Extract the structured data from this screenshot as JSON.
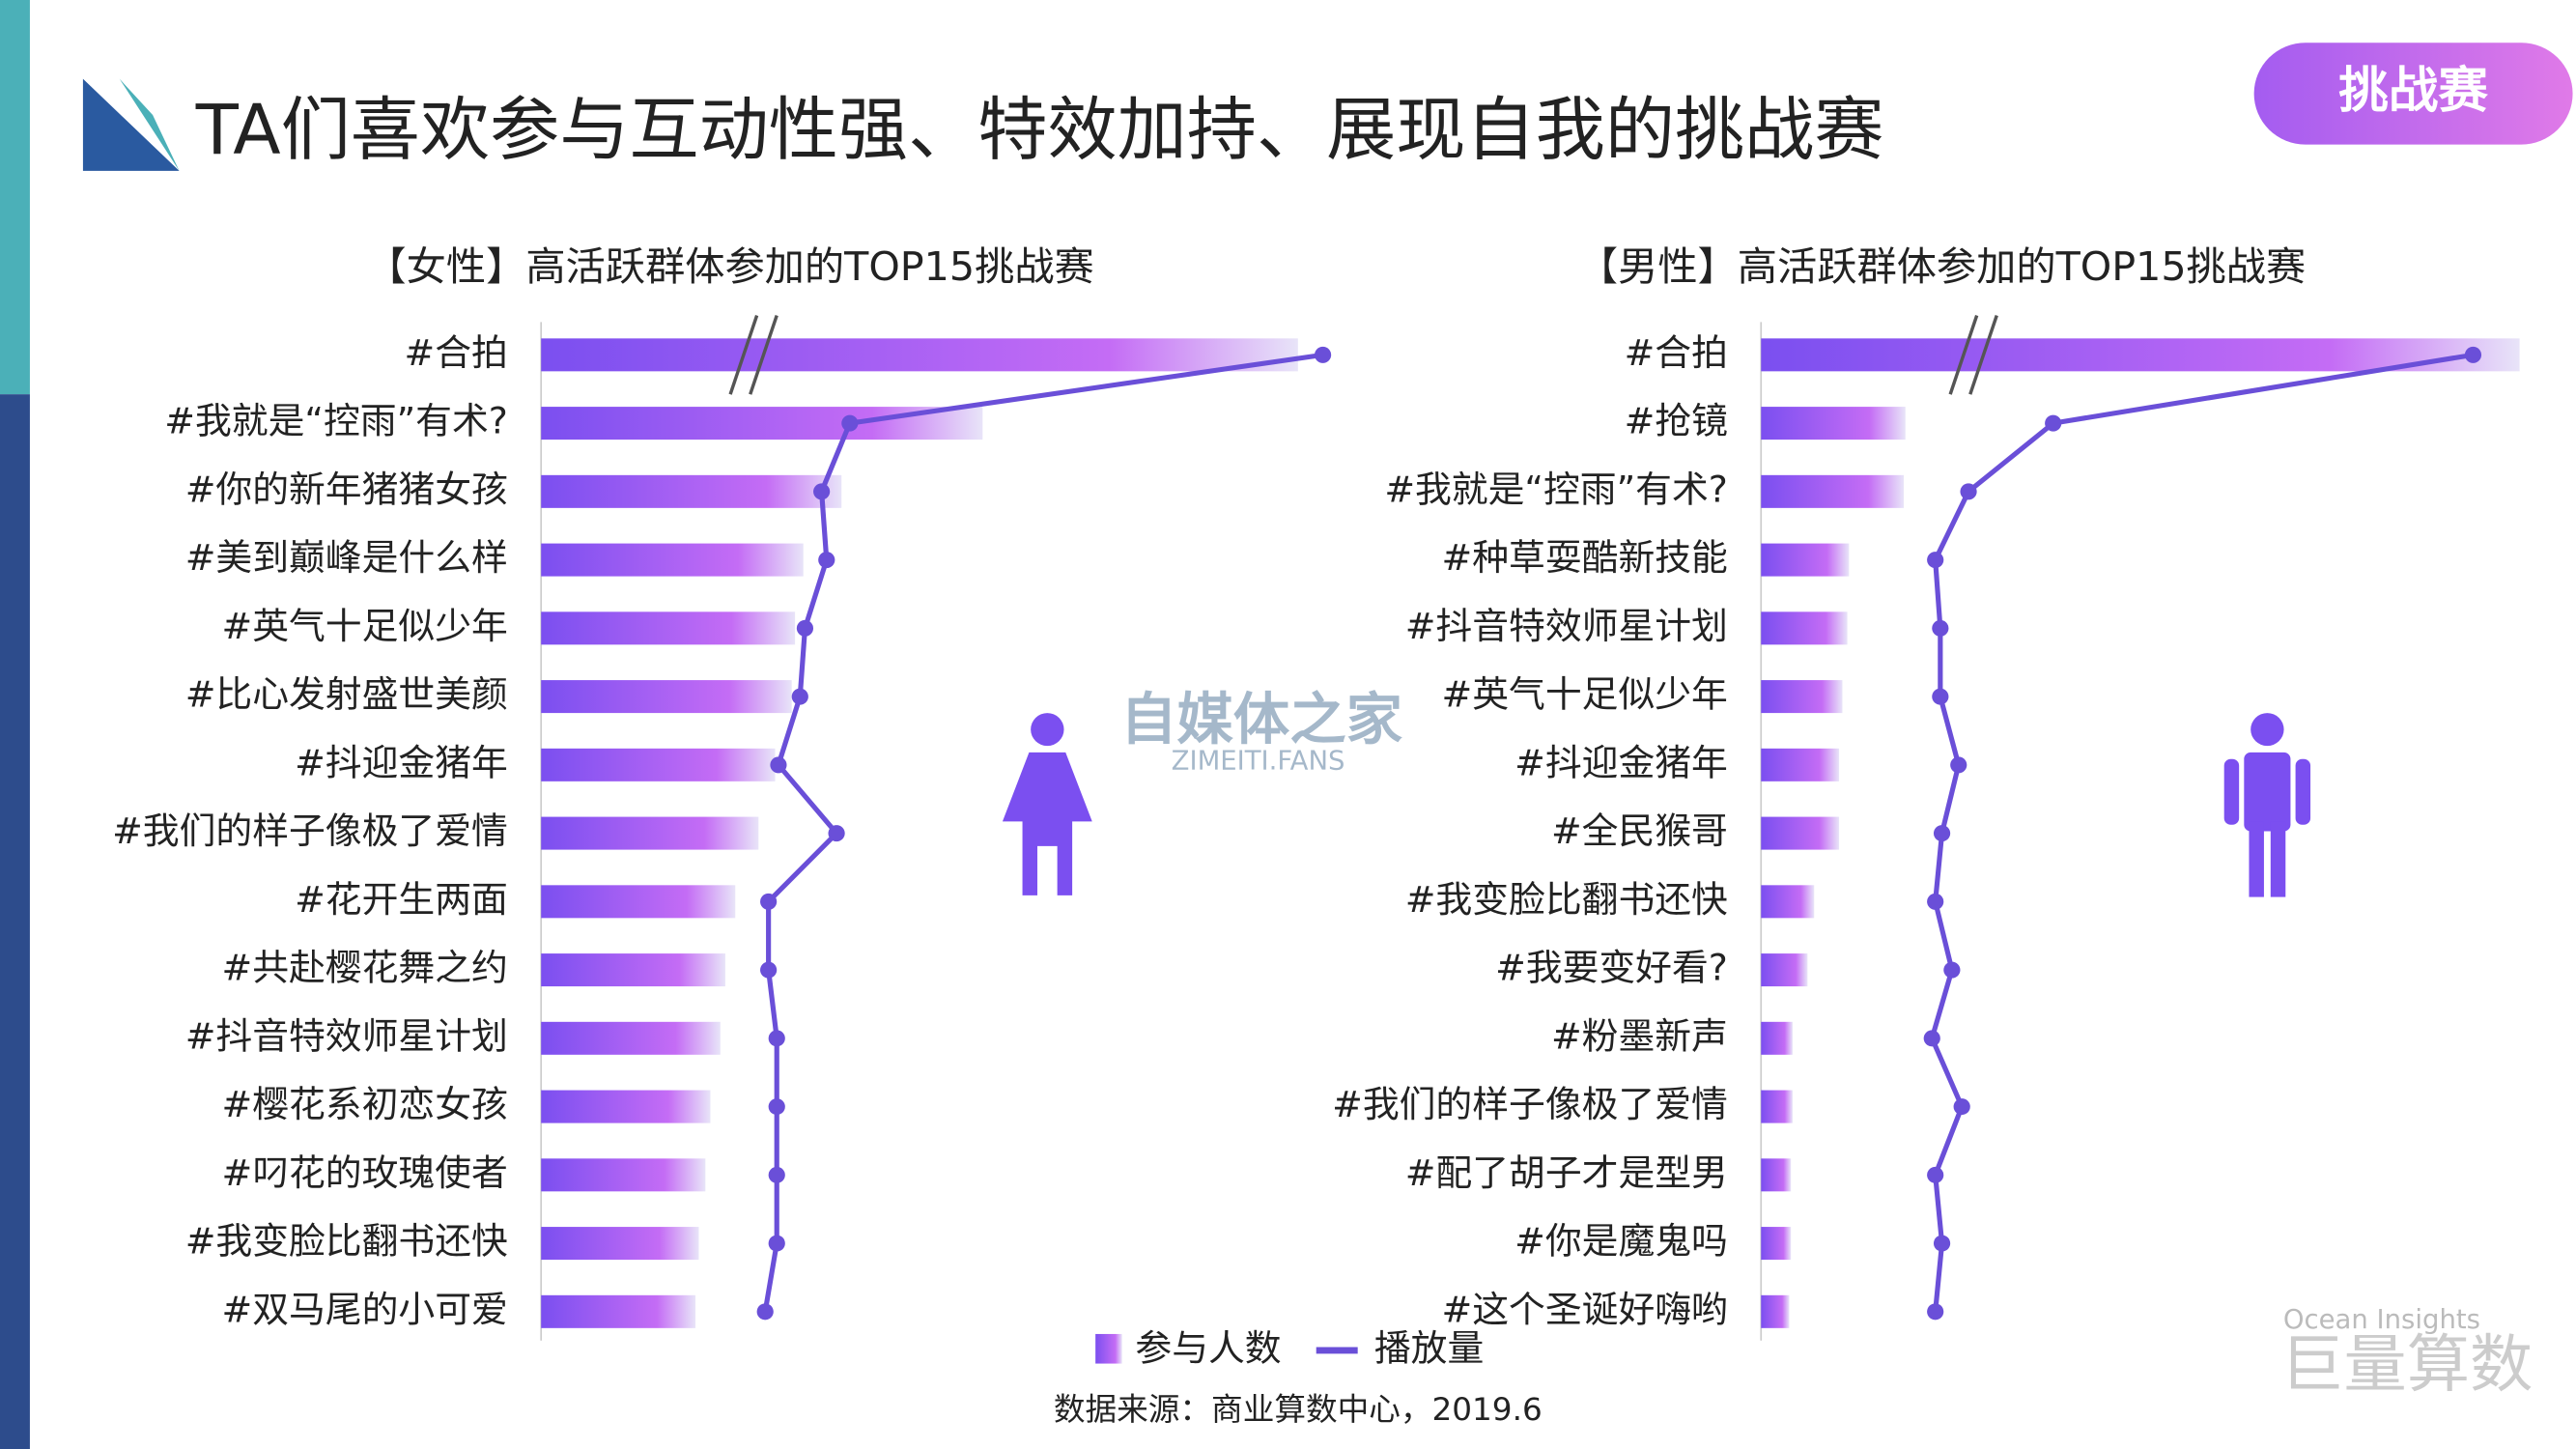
{
  "header": {
    "title": "TA们喜欢参与互动性强、特效加持、展现自我的挑战赛",
    "tag": "挑战赛"
  },
  "chart_data": [
    {
      "type": "bar",
      "title": "【女性】高活跃群体参加的TOP15挑战赛",
      "categories": [
        "#合拍",
        "#我就是“控雨”有术?",
        "#你的新年猪猪女孩",
        "#美到巅峰是什么样",
        "#英气十足似少年",
        "#比心发射盛世美颜",
        "#抖迎金猪年",
        "#我们的样子像极了爱情",
        "#花开生两面",
        "#共赴樱花舞之约",
        "#抖音特效师星计划",
        "#樱花系初恋女孩",
        "#叼花的玫瑰使者",
        "#我变脸比翻书还快",
        "#双马尾的小可爱"
      ],
      "series": [
        {
          "name": "参与人数",
          "color": "#8a55f0",
          "values": [
            456,
            266,
            181,
            158,
            153,
            151,
            141,
            131,
            117,
            111,
            108,
            102,
            99,
            95,
            93
          ]
        },
        {
          "name": "播放量",
          "color": "#6a4fd8",
          "type": "line",
          "values": [
            471,
            186,
            169,
            172,
            159,
            156,
            143,
            178,
            137,
            137,
            142,
            142,
            142,
            142,
            135
          ]
        }
      ]
    },
    {
      "type": "bar",
      "title": "【男性】高活跃群体参加的TOP15挑战赛",
      "categories": [
        "#合拍",
        "#抢镜",
        "#我就是“控雨”有术?",
        "#种草耍酷新技能",
        "#抖音特效师星计划",
        "#英气十足似少年",
        "#抖迎金猪年",
        "#全民猴哥",
        "#我变脸比翻书还快",
        "#我要变好看?",
        "#粉墨新声",
        "#我们的样子像极了爱情",
        "#配了胡子才是型男",
        "#你是魔鬼吗",
        "#这个圣诞好嗨哟"
      ],
      "series": [
        {
          "name": "参与人数",
          "color": "#8a55f0",
          "values": [
            457,
            87,
            86,
            53,
            52,
            49,
            47,
            47,
            32,
            28,
            19,
            19,
            18,
            18,
            17
          ]
        },
        {
          "name": "播放量",
          "color": "#6a4fd8",
          "type": "line",
          "values": [
            429,
            176,
            125,
            105,
            108,
            108,
            119,
            109,
            105,
            115,
            103,
            121,
            105,
            109,
            105
          ]
        }
      ]
    }
  ],
  "source": "数据来源：商业算数中心，2019.6",
  "watermark": {
    "name": "自媒体之家",
    "url": "ZIMEITI.FANS"
  },
  "brand": {
    "en": "Ocean Insights",
    "cn": "巨量算数"
  }
}
